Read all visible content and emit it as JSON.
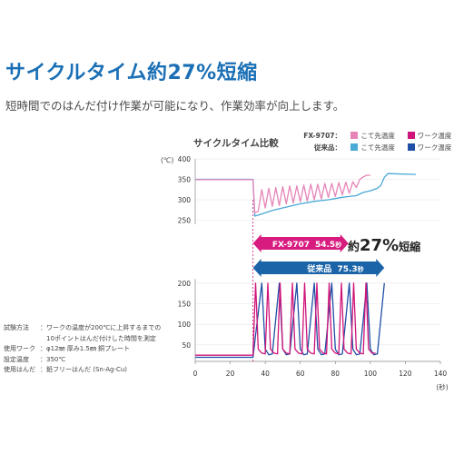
{
  "header": {
    "headline": "サイクルタイム約27%短縮",
    "subline": "短時間でのはんだ付け作業が可能になり、作業効率が向上します。"
  },
  "legend": {
    "row1_product": "FX-9707",
    "row2_product": "従来品",
    "separator": "：",
    "tip_label": "こて先温度",
    "work_label": "ワーク温度"
  },
  "conditions": [
    {
      "label": "試験方法",
      "value": "：ワークの温度が200℃に上昇するまでの",
      "value2": "　10ポイントはんだ付けした時間を測定"
    },
    {
      "label": "使用ワーク",
      "value": "：φ12㎜ 厚み1.5㎜ 銅プレート"
    },
    {
      "label": "設定温度",
      "value": "：350℃"
    },
    {
      "label": "使用はんだ",
      "value": "：鉛フリーはんだ (Sn-Ag-Cu)"
    }
  ],
  "colors": {
    "fx_tip": "#e684b8",
    "fx_work": "#d0157a",
    "old_tip": "#4aa9d6",
    "old_work": "#1f4fa6",
    "headline": "#1a6fb5",
    "fx_arrow": "#d81b7f",
    "old_arrow": "#1c64a8"
  },
  "chart_data": {
    "type": "line",
    "title": "サイクルタイム比較",
    "x_unit": "(秒)",
    "y_unit": "(℃)",
    "xlim": [
      0,
      140
    ],
    "x_ticks": [
      0,
      20,
      40,
      60,
      80,
      100,
      120,
      140
    ],
    "top_panel": {
      "ylim": [
        240,
        400
      ],
      "y_ticks": [
        250,
        300,
        350,
        400
      ],
      "series": [
        {
          "name": "FX-9707 こて先温度",
          "x": [
            0,
            33,
            34,
            36,
            38,
            40,
            42,
            44,
            46,
            48,
            50,
            52,
            54,
            56,
            58,
            60,
            62,
            64,
            66,
            68,
            70,
            72,
            74,
            76,
            78,
            80,
            82,
            84,
            86,
            88,
            90,
            92,
            94,
            96,
            98,
            100
          ],
          "values": [
            349,
            349,
            268,
            272,
            325,
            280,
            328,
            284,
            330,
            286,
            332,
            290,
            334,
            292,
            334,
            295,
            336,
            297,
            338,
            300,
            338,
            302,
            340,
            306,
            340,
            308,
            342,
            312,
            343,
            316,
            344,
            330,
            350,
            356,
            360,
            360
          ]
        },
        {
          "name": "従来品 こて先温度",
          "x": [
            0,
            33,
            34,
            37,
            40,
            44,
            48,
            52,
            56,
            60,
            64,
            68,
            72,
            76,
            80,
            84,
            88,
            92,
            96,
            100,
            104,
            106,
            108,
            110,
            126
          ],
          "values": [
            350,
            350,
            260,
            264,
            268,
            274,
            278,
            282,
            286,
            290,
            293,
            296,
            298,
            300,
            303,
            306,
            308,
            310,
            318,
            322,
            328,
            335,
            355,
            364,
            362
          ]
        }
      ]
    },
    "bottom_panel": {
      "ylim": [
        10,
        215
      ],
      "y_ticks": [
        50,
        100,
        150,
        200
      ],
      "series": [
        {
          "name": "FX-9707 ワーク温度",
          "x": [
            0,
            33,
            34.5,
            36,
            38,
            40,
            41.5,
            43,
            45,
            47,
            48.5,
            50,
            52,
            54,
            55.5,
            57,
            59,
            61,
            62.5,
            64,
            66,
            68,
            69.5,
            71,
            73,
            75,
            76.5,
            78,
            80,
            82,
            83.5,
            85,
            87,
            89,
            90.5,
            92,
            94,
            96,
            97.5,
            99,
            101,
            103
          ],
          "values": [
            25,
            25,
            200,
            40,
            30,
            28,
            200,
            40,
            30,
            28,
            200,
            40,
            30,
            28,
            200,
            40,
            30,
            28,
            200,
            40,
            30,
            28,
            200,
            40,
            30,
            28,
            200,
            40,
            30,
            28,
            200,
            40,
            30,
            28,
            200,
            40,
            30,
            28,
            200,
            40,
            30,
            30
          ]
        },
        {
          "name": "従来品 ワーク温度",
          "x": [
            0,
            33,
            38,
            40,
            42,
            44,
            48,
            50,
            52,
            54,
            58,
            60,
            62,
            64,
            68,
            70,
            72,
            74,
            78,
            80,
            82,
            84,
            88,
            90,
            92,
            94,
            98,
            100,
            102,
            104,
            108
          ],
          "values": [
            20,
            20,
            200,
            40,
            26,
            28,
            200,
            40,
            26,
            28,
            200,
            40,
            26,
            28,
            200,
            40,
            26,
            28,
            200,
            40,
            26,
            28,
            200,
            40,
            26,
            28,
            200,
            40,
            26,
            28,
            200
          ]
        }
      ]
    },
    "annotations": {
      "fx_label": "FX-9707",
      "fx_time": "54.5",
      "old_label": "従来品",
      "old_time": "75.3",
      "time_unit": "秒",
      "reduction_prefix": "約",
      "reduction_value": "27%",
      "reduction_suffix": "短縮"
    }
  }
}
